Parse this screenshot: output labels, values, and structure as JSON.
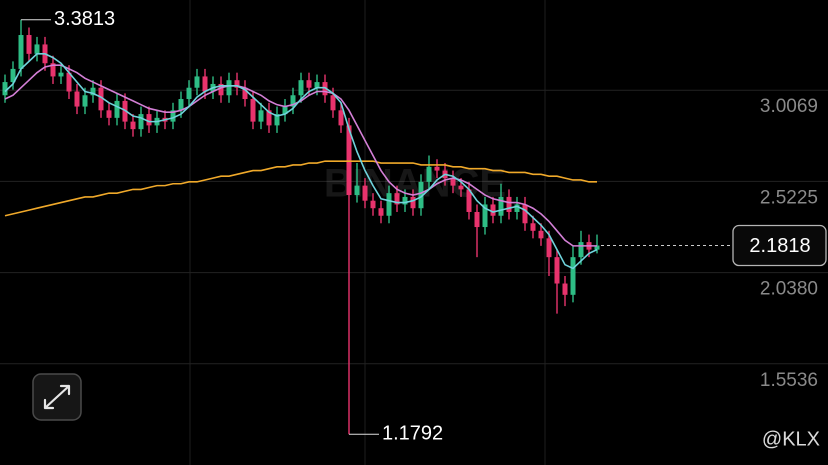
{
  "chart_data": {
    "type": "candlestick",
    "ylim": [
      1.016,
      3.486
    ],
    "yticks": [
      3.0069,
      2.5225,
      {
        "value": 2.038,
        "label": "2.0380"
      },
      1.5536
    ],
    "grid": true,
    "up_color": "#2ebd85",
    "down_color": "#e8336d",
    "open": [
      2.98,
      3.05,
      3.12,
      3.3,
      3.2,
      3.25,
      3.15,
      3.08,
      3.1,
      3.0,
      2.92,
      2.98,
      3.02,
      2.9,
      2.86,
      2.95,
      2.84,
      2.8,
      2.88,
      2.82,
      2.86,
      2.84,
      2.9,
      2.96,
      3.02,
      3.08,
      3.0,
      3.04,
      2.98,
      3.06,
      3.02,
      2.96,
      2.84,
      2.9,
      2.82,
      2.88,
      2.92,
      2.98,
      3.06,
      3.02,
      3.05,
      2.98,
      2.9,
      2.82,
      2.45,
      2.5,
      2.42,
      2.38,
      2.34,
      2.46,
      2.4,
      2.44,
      2.38,
      2.52,
      2.6,
      2.58,
      2.54,
      2.5,
      2.48,
      2.36,
      2.28,
      2.4,
      2.34,
      2.44,
      2.36,
      2.4,
      2.3,
      2.26,
      2.22,
      2.12,
      1.98,
      1.92,
      2.12,
      2.2,
      2.16
    ],
    "high": [
      3.09,
      3.16,
      3.3813,
      3.34,
      3.29,
      3.29,
      3.19,
      3.14,
      3.14,
      3.04,
      3.02,
      3.06,
      3.06,
      2.94,
      2.99,
      2.99,
      2.88,
      2.92,
      2.92,
      2.9,
      2.9,
      2.94,
      3.0,
      3.06,
      3.12,
      3.12,
      3.08,
      3.08,
      3.1,
      3.1,
      3.06,
      3.0,
      2.94,
      2.94,
      2.92,
      2.96,
      3.02,
      3.1,
      3.1,
      3.09,
      3.09,
      3.02,
      2.94,
      2.86,
      2.62,
      2.54,
      2.46,
      2.42,
      2.5,
      2.5,
      2.48,
      2.48,
      2.56,
      2.66,
      2.64,
      2.62,
      2.58,
      2.54,
      2.52,
      2.4,
      2.44,
      2.44,
      2.51,
      2.48,
      2.44,
      2.44,
      2.34,
      2.3,
      2.26,
      2.16,
      2.02,
      2.18,
      2.26,
      2.24,
      2.24
    ],
    "low": [
      2.94,
      3.01,
      3.08,
      3.16,
      3.16,
      3.11,
      3.04,
      3.04,
      2.96,
      2.88,
      2.88,
      2.94,
      2.86,
      2.82,
      2.82,
      2.8,
      2.76,
      2.76,
      2.78,
      2.78,
      2.8,
      2.8,
      2.86,
      2.92,
      2.98,
      2.96,
      2.96,
      2.94,
      2.94,
      2.98,
      2.92,
      2.8,
      2.8,
      2.78,
      2.78,
      2.84,
      2.88,
      2.94,
      2.98,
      2.98,
      2.94,
      2.86,
      2.78,
      1.1792,
      2.41,
      2.38,
      2.34,
      2.3,
      2.3,
      2.36,
      2.36,
      2.34,
      2.34,
      2.48,
      2.54,
      2.5,
      2.46,
      2.44,
      2.32,
      2.12,
      2.24,
      2.3,
      2.3,
      2.32,
      2.32,
      2.26,
      2.22,
      2.18,
      2.02,
      1.82,
      1.86,
      1.88,
      2.08,
      2.12,
      2.14
    ],
    "close": [
      3.05,
      3.12,
      3.3,
      3.2,
      3.25,
      3.15,
      3.08,
      3.1,
      3.0,
      2.92,
      2.98,
      3.02,
      2.9,
      2.86,
      2.95,
      2.84,
      2.8,
      2.88,
      2.82,
      2.86,
      2.84,
      2.9,
      2.96,
      3.02,
      3.08,
      3.0,
      3.04,
      2.98,
      3.06,
      3.02,
      2.96,
      2.84,
      2.9,
      2.82,
      2.88,
      2.92,
      2.98,
      3.06,
      3.02,
      3.05,
      2.98,
      2.9,
      2.82,
      2.45,
      2.5,
      2.42,
      2.38,
      2.34,
      2.46,
      2.4,
      2.44,
      2.38,
      2.52,
      2.6,
      2.58,
      2.54,
      2.5,
      2.48,
      2.36,
      2.28,
      2.4,
      2.34,
      2.44,
      2.36,
      2.4,
      2.3,
      2.26,
      2.22,
      2.12,
      1.98,
      1.92,
      2.12,
      2.2,
      2.16,
      2.1818
    ],
    "moving_averages": [
      {
        "color": "#f0a92a",
        "values": [
          2.34,
          2.35,
          2.36,
          2.37,
          2.38,
          2.39,
          2.4,
          2.41,
          2.42,
          2.43,
          2.44,
          2.44,
          2.45,
          2.46,
          2.46,
          2.47,
          2.48,
          2.48,
          2.49,
          2.5,
          2.5,
          2.51,
          2.51,
          2.52,
          2.52,
          2.53,
          2.54,
          2.55,
          2.55,
          2.56,
          2.57,
          2.58,
          2.58,
          2.59,
          2.6,
          2.6,
          2.61,
          2.61,
          2.62,
          2.62,
          2.63,
          2.63,
          2.63,
          2.63,
          2.63,
          2.63,
          2.63,
          2.62,
          2.62,
          2.62,
          2.62,
          2.62,
          2.61,
          2.61,
          2.61,
          2.61,
          2.6,
          2.6,
          2.59,
          2.59,
          2.59,
          2.58,
          2.58,
          2.57,
          2.57,
          2.57,
          2.56,
          2.56,
          2.55,
          2.55,
          2.54,
          2.53,
          2.53,
          2.52,
          2.52
        ]
      },
      {
        "color": "#d37fd6",
        "values": [
          2.96,
          2.98,
          3.02,
          3.06,
          3.1,
          3.13,
          3.14,
          3.14,
          3.12,
          3.1,
          3.07,
          3.05,
          3.03,
          3.01,
          2.99,
          2.97,
          2.95,
          2.93,
          2.91,
          2.9,
          2.89,
          2.89,
          2.9,
          2.92,
          2.95,
          2.98,
          3.0,
          3.02,
          3.03,
          3.03,
          3.02,
          3.0,
          2.98,
          2.95,
          2.93,
          2.92,
          2.93,
          2.95,
          2.98,
          3.0,
          3.0,
          2.99,
          2.96,
          2.9,
          2.82,
          2.74,
          2.66,
          2.58,
          2.52,
          2.48,
          2.46,
          2.45,
          2.46,
          2.48,
          2.51,
          2.53,
          2.54,
          2.53,
          2.51,
          2.48,
          2.45,
          2.43,
          2.42,
          2.41,
          2.41,
          2.4,
          2.38,
          2.35,
          2.31,
          2.26,
          2.21,
          2.18,
          2.18,
          2.18,
          2.18
        ]
      },
      {
        "color": "#6fd3dc",
        "values": [
          3.0,
          3.04,
          3.12,
          3.16,
          3.2,
          3.2,
          3.18,
          3.15,
          3.1,
          3.05,
          3.0,
          2.99,
          2.97,
          2.94,
          2.92,
          2.9,
          2.87,
          2.86,
          2.84,
          2.84,
          2.85,
          2.86,
          2.88,
          2.92,
          2.97,
          3.0,
          3.02,
          3.03,
          3.03,
          3.03,
          3.01,
          2.97,
          2.93,
          2.89,
          2.87,
          2.88,
          2.91,
          2.96,
          3.0,
          3.02,
          3.02,
          2.99,
          2.94,
          2.8,
          2.68,
          2.58,
          2.5,
          2.43,
          2.42,
          2.41,
          2.41,
          2.42,
          2.44,
          2.48,
          2.53,
          2.56,
          2.55,
          2.52,
          2.48,
          2.42,
          2.38,
          2.36,
          2.37,
          2.38,
          2.39,
          2.37,
          2.33,
          2.29,
          2.24,
          2.16,
          2.08,
          2.06,
          2.1,
          2.14,
          2.16
        ]
      }
    ],
    "watermark": "BINANCE",
    "handle": "@KLX"
  }
}
